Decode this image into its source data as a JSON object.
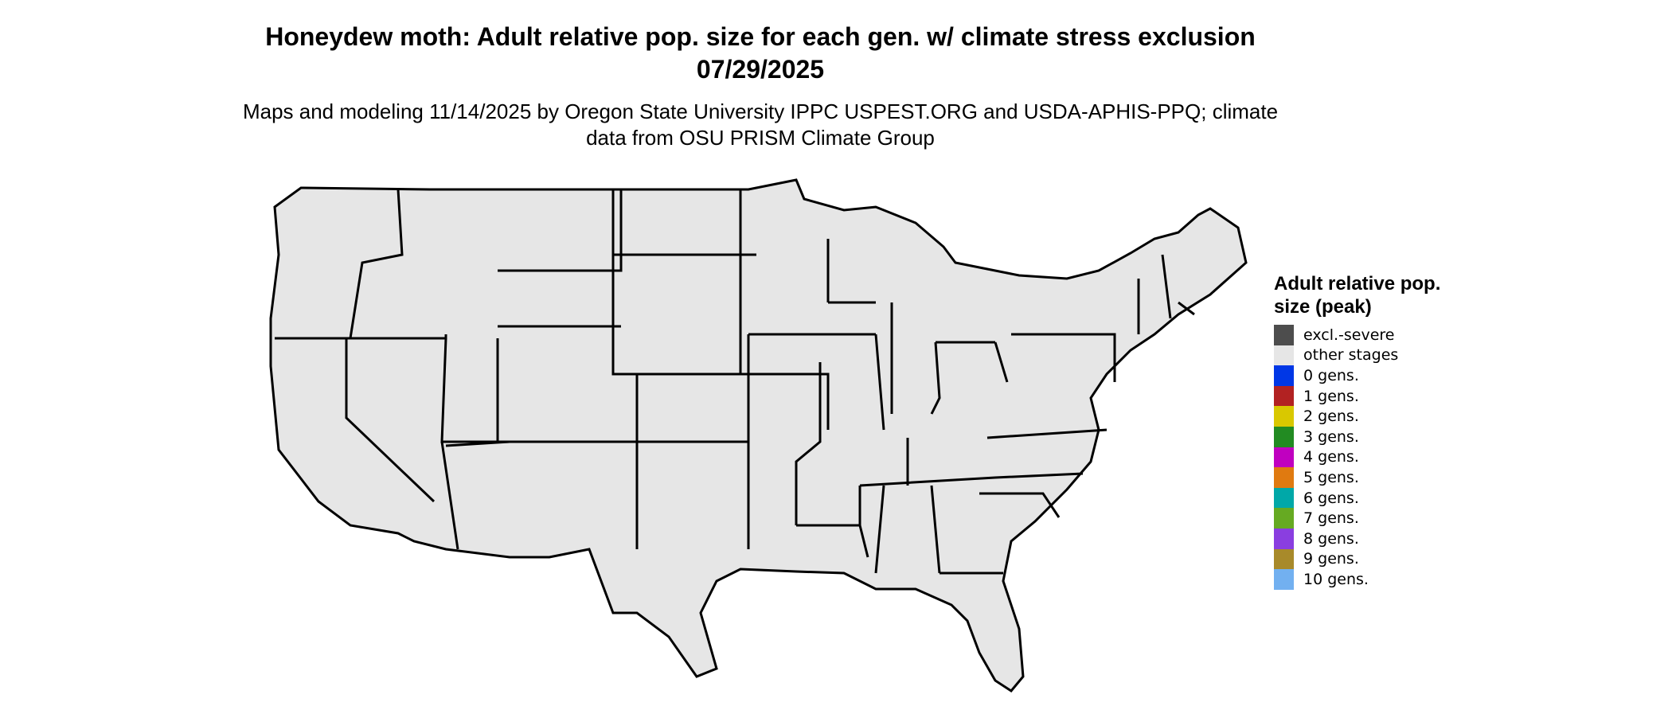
{
  "title": "Honeydew moth: Adult relative pop. size for each gen. w/ climate stress exclusion 07/29/2025",
  "subtitle": "Maps and modeling 11/14/2025 by Oregon State University IPPC USPEST.ORG and USDA-APHIS-PPQ; climate data from OSU PRISM Climate Group",
  "legend": {
    "title": "Adult relative pop. size (peak)",
    "items": [
      {
        "label": "excl.-severe",
        "color": "#4d4d4d"
      },
      {
        "label": "other stages",
        "color": "#e6e6e6"
      },
      {
        "label": "0 gens.",
        "color": "#0037e6"
      },
      {
        "label": "1 gens.",
        "color": "#b22222"
      },
      {
        "label": "2 gens.",
        "color": "#d9c800"
      },
      {
        "label": "3 gens.",
        "color": "#228b22"
      },
      {
        "label": "4 gens.",
        "color": "#c000c0"
      },
      {
        "label": "5 gens.",
        "color": "#e07a10"
      },
      {
        "label": "6 gens.",
        "color": "#00a8a8"
      },
      {
        "label": "7 gens.",
        "color": "#66aa22"
      },
      {
        "label": "8 gens.",
        "color": "#8a3ee0"
      },
      {
        "label": "9 gens.",
        "color": "#a88a2a"
      },
      {
        "label": "10 gens.",
        "color": "#72b0f0"
      }
    ]
  },
  "map_colors": {
    "land": "#e6e6e6",
    "excluded": "#4d4d4d",
    "one_gen": "#e03a10",
    "two_gen": "#f0ea00",
    "three_gen": "#2fa02f",
    "four_gen": "#e000e0",
    "blue": "#3399ff",
    "border": "#000000"
  }
}
